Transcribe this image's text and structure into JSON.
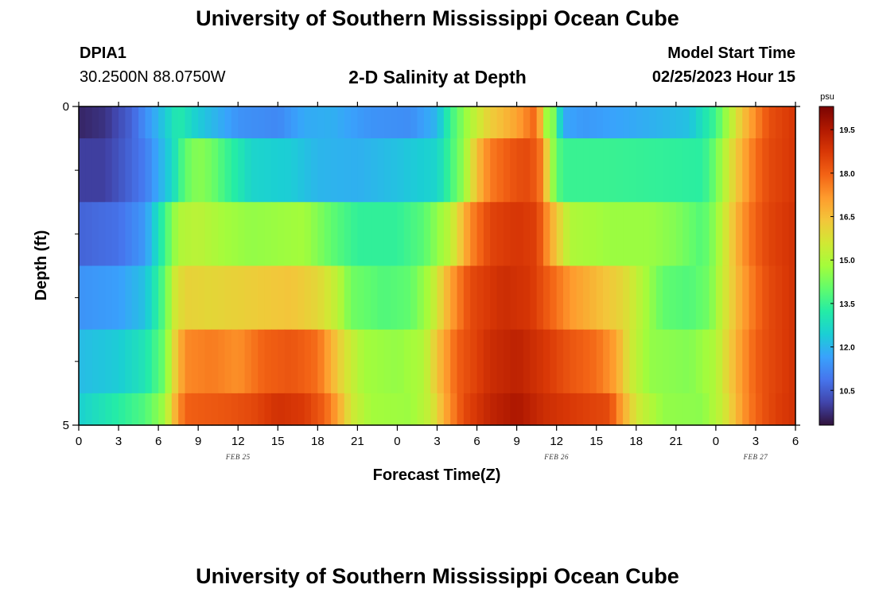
{
  "page": {
    "title": "University of Southern Mississippi Ocean Cube",
    "station_id": "DPIA1",
    "station_coords": "30.2500N  88.0750W",
    "subtitle": "2-D Salinity at Depth",
    "model_start_label": "Model Start Time",
    "model_start_value": "02/25/2023 Hour 15",
    "footer_title": "University of Southern Mississippi Ocean Cube"
  },
  "chart_data": {
    "type": "heatmap",
    "title": "2-D Salinity at Depth",
    "xlabel": "Forecast Time(Z)",
    "ylabel": "Depth (ft)",
    "x_hours": [
      0,
      3,
      6,
      9,
      12,
      15,
      18,
      21,
      24,
      27,
      30,
      33,
      36,
      39,
      42,
      45,
      48,
      51,
      54
    ],
    "x_tick_labels": [
      "0",
      "3",
      "6",
      "9",
      "12",
      "15",
      "18",
      "21",
      "0",
      "3",
      "6",
      "9",
      "12",
      "15",
      "18",
      "21",
      "0",
      "3",
      "6"
    ],
    "xlim": [
      0,
      54
    ],
    "day_labels": [
      {
        "label": "FEB 25",
        "hour": 12
      },
      {
        "label": "FEB 26",
        "hour": 36
      },
      {
        "label": "FEB 27",
        "hour": 51
      }
    ],
    "ylim": [
      0,
      5
    ],
    "y_tick_labels": [
      "0",
      "5"
    ],
    "y_minor_ticks": [
      1,
      2,
      3,
      4
    ],
    "depth_layers_ft": [
      {
        "top": 0,
        "bottom": 0.5
      },
      {
        "top": 0.5,
        "bottom": 1.5
      },
      {
        "top": 1.5,
        "bottom": 2.5
      },
      {
        "top": 2.5,
        "bottom": 3.5
      },
      {
        "top": 3.5,
        "bottom": 4.5
      },
      {
        "top": 4.5,
        "bottom": 5
      }
    ],
    "salinity_keyframes": [
      [
        [
          0,
          9.6
        ],
        [
          2,
          9.8
        ],
        [
          4,
          10.6
        ],
        [
          6,
          12.0
        ],
        [
          7.5,
          13.2
        ],
        [
          9,
          12.4
        ],
        [
          12,
          11.4
        ],
        [
          15,
          11.2
        ],
        [
          17,
          11.8
        ],
        [
          19,
          11.9
        ],
        [
          22,
          11.4
        ],
        [
          25,
          11.3
        ],
        [
          27,
          12.0
        ],
        [
          28,
          13.5
        ],
        [
          29.5,
          15.0
        ],
        [
          31,
          16.2
        ],
        [
          33,
          17.0
        ],
        [
          34.5,
          18.0
        ],
        [
          35.2,
          14.8
        ],
        [
          36,
          14.2
        ],
        [
          36.4,
          11.8
        ],
        [
          38,
          11.5
        ],
        [
          42,
          11.8
        ],
        [
          46,
          12.2
        ],
        [
          48,
          13.6
        ],
        [
          49,
          15.0
        ],
        [
          50,
          16.4
        ],
        [
          51,
          17.4
        ],
        [
          52,
          18.3
        ],
        [
          54,
          18.8
        ]
      ],
      [
        [
          0,
          10.0
        ],
        [
          2,
          10.0
        ],
        [
          5,
          11.0
        ],
        [
          7,
          12.6
        ],
        [
          8,
          14.0
        ],
        [
          9,
          14.5
        ],
        [
          10,
          14.2
        ],
        [
          11,
          13.6
        ],
        [
          13,
          12.6
        ],
        [
          16,
          12.4
        ],
        [
          18,
          12.0
        ],
        [
          21,
          11.9
        ],
        [
          24,
          12.2
        ],
        [
          27,
          12.6
        ],
        [
          29,
          14.6
        ],
        [
          30,
          16.5
        ],
        [
          31,
          17.6
        ],
        [
          33,
          18.3
        ],
        [
          34,
          18.4
        ],
        [
          35,
          17.5
        ],
        [
          35.5,
          15.0
        ],
        [
          36.4,
          13.5
        ],
        [
          40,
          13.5
        ],
        [
          44,
          13.4
        ],
        [
          47,
          13.3
        ],
        [
          48,
          14.2
        ],
        [
          49,
          15.6
        ],
        [
          50,
          16.8
        ],
        [
          51,
          17.8
        ],
        [
          52,
          18.4
        ],
        [
          54,
          18.8
        ]
      ],
      [
        [
          0,
          10.6
        ],
        [
          3,
          10.8
        ],
        [
          5,
          11.5
        ],
        [
          6.5,
          13.6
        ],
        [
          7.5,
          15.0
        ],
        [
          9,
          15.2
        ],
        [
          11,
          14.8
        ],
        [
          13,
          14.6
        ],
        [
          15,
          14.7
        ],
        [
          17,
          14.8
        ],
        [
          19,
          14.0
        ],
        [
          21,
          13.4
        ],
        [
          24,
          13.4
        ],
        [
          26,
          13.9
        ],
        [
          28,
          15.2
        ],
        [
          29.5,
          17.4
        ],
        [
          31,
          18.5
        ],
        [
          33,
          18.8
        ],
        [
          34.5,
          18.6
        ],
        [
          35.5,
          17.0
        ],
        [
          37,
          15.0
        ],
        [
          40,
          14.7
        ],
        [
          43,
          14.7
        ],
        [
          45,
          14.4
        ],
        [
          47,
          13.8
        ],
        [
          48,
          14.6
        ],
        [
          49,
          16.0
        ],
        [
          50,
          17.2
        ],
        [
          51,
          18.0
        ],
        [
          52,
          18.5
        ],
        [
          54,
          18.9
        ]
      ],
      [
        [
          0,
          11.4
        ],
        [
          3,
          11.6
        ],
        [
          5,
          12.2
        ],
        [
          6.5,
          14.0
        ],
        [
          7.2,
          15.5
        ],
        [
          8,
          16.1
        ],
        [
          10,
          16.0
        ],
        [
          13,
          16.2
        ],
        [
          16,
          16.4
        ],
        [
          18,
          16.0
        ],
        [
          19.5,
          15.2
        ],
        [
          20.5,
          14.2
        ],
        [
          23,
          13.8
        ],
        [
          25,
          14.0
        ],
        [
          26.5,
          15.0
        ],
        [
          28,
          17.0
        ],
        [
          29.5,
          18.4
        ],
        [
          32,
          19.0
        ],
        [
          34,
          18.8
        ],
        [
          35.5,
          18.0
        ],
        [
          37,
          17.2
        ],
        [
          39,
          16.6
        ],
        [
          41,
          16.0
        ],
        [
          42.5,
          15.0
        ],
        [
          44,
          14.0
        ],
        [
          46,
          13.8
        ],
        [
          47.5,
          14.2
        ],
        [
          48.5,
          15.4
        ],
        [
          50,
          17.0
        ],
        [
          51,
          17.8
        ],
        [
          52,
          18.4
        ],
        [
          54,
          18.9
        ]
      ],
      [
        [
          0,
          12.1
        ],
        [
          3,
          12.4
        ],
        [
          5,
          13.0
        ],
        [
          6.5,
          14.2
        ],
        [
          7.2,
          16.0
        ],
        [
          8,
          17.4
        ],
        [
          10,
          17.6
        ],
        [
          12,
          17.3
        ],
        [
          14,
          18.0
        ],
        [
          16,
          18.2
        ],
        [
          18,
          17.8
        ],
        [
          19,
          16.8
        ],
        [
          20,
          15.8
        ],
        [
          21.5,
          14.8
        ],
        [
          24,
          14.6
        ],
        [
          26,
          15.0
        ],
        [
          27,
          16.4
        ],
        [
          28.5,
          18.0
        ],
        [
          31,
          19.0
        ],
        [
          33,
          19.3
        ],
        [
          35,
          18.8
        ],
        [
          37,
          18.2
        ],
        [
          39,
          17.8
        ],
        [
          40.5,
          17.0
        ],
        [
          41.5,
          15.6
        ],
        [
          43,
          14.6
        ],
        [
          46,
          14.4
        ],
        [
          48,
          15.0
        ],
        [
          49,
          16.2
        ],
        [
          50,
          17.2
        ],
        [
          51,
          18.0
        ],
        [
          52,
          18.4
        ],
        [
          54,
          18.9
        ]
      ],
      [
        [
          0,
          12.5
        ],
        [
          2,
          13.0
        ],
        [
          5,
          13.8
        ],
        [
          6.5,
          14.8
        ],
        [
          7.2,
          16.6
        ],
        [
          8,
          18.0
        ],
        [
          11,
          18.2
        ],
        [
          13,
          18.4
        ],
        [
          15,
          18.9
        ],
        [
          17,
          18.7
        ],
        [
          18.5,
          18.0
        ],
        [
          19.5,
          17.0
        ],
        [
          20.5,
          15.6
        ],
        [
          22,
          14.8
        ],
        [
          25,
          14.7
        ],
        [
          26.5,
          15.4
        ],
        [
          27.5,
          16.8
        ],
        [
          29,
          18.4
        ],
        [
          31,
          19.2
        ],
        [
          33,
          19.6
        ],
        [
          35,
          19.0
        ],
        [
          38,
          18.6
        ],
        [
          40,
          18.4
        ],
        [
          40.8,
          17.2
        ],
        [
          42,
          15.6
        ],
        [
          44,
          14.6
        ],
        [
          47,
          14.5
        ],
        [
          48.5,
          15.4
        ],
        [
          49.5,
          16.6
        ],
        [
          50.5,
          17.6
        ],
        [
          51.5,
          18.2
        ],
        [
          52.5,
          18.6
        ],
        [
          54,
          18.9
        ]
      ]
    ],
    "colorbar": {
      "unit": "psu",
      "min": 9.3,
      "max": 20.3,
      "tick_values": [
        10.5,
        12.0,
        13.5,
        15.0,
        16.5,
        18.0,
        19.5
      ],
      "tick_labels": [
        "10.5",
        "12.0",
        "13.5",
        "15.0",
        "16.5",
        "18.0",
        "19.5"
      ]
    },
    "colormap": [
      "#30123b",
      "#4145ab",
      "#4675ed",
      "#39a2fc",
      "#1bcfd4",
      "#24eca6",
      "#61fc6c",
      "#a4fc3b",
      "#d1e834",
      "#f3c63a",
      "#fe9b2d",
      "#f36315",
      "#d93806",
      "#b11901",
      "#7a0402"
    ]
  }
}
